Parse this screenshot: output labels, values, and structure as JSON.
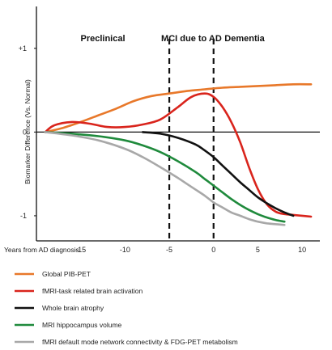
{
  "chart_data": {
    "type": "line",
    "ylabel": "Biomarker Difference (Vs. Normal)",
    "xlabel": "Years from AD diagnosis",
    "xlim": [
      -20,
      12
    ],
    "ylim": [
      -1.3,
      1.5
    ],
    "x_ticks": [
      {
        "value": -15,
        "label": "-15"
      },
      {
        "value": -10,
        "label": "-10"
      },
      {
        "value": -5,
        "label": "-5"
      },
      {
        "value": 0,
        "label": "0"
      },
      {
        "value": 5,
        "label": "5"
      },
      {
        "value": 10,
        "label": "10"
      }
    ],
    "y_ticks": [
      {
        "value": 1,
        "label": "+1"
      },
      {
        "value": 0,
        "label": "0"
      },
      {
        "value": -1,
        "label": "-1"
      }
    ],
    "phases": [
      {
        "label": "Preclinical",
        "x": -12.5
      },
      {
        "label": "MCI due to AD",
        "x": -2.5
      },
      {
        "label": "Dementia",
        "x": 3.5
      }
    ],
    "dividers": [
      -5,
      0
    ],
    "grid": false,
    "legend_position": "bottom",
    "series": [
      {
        "name": "Global PIB-PET",
        "color": "#e8782a",
        "x": [
          -19,
          -17,
          -15,
          -13,
          -11,
          -9,
          -7,
          -5,
          -3,
          -1,
          1,
          3,
          5,
          7,
          9,
          11
        ],
        "y": [
          0.0,
          0.05,
          0.12,
          0.2,
          0.28,
          0.37,
          0.43,
          0.46,
          0.49,
          0.51,
          0.53,
          0.54,
          0.55,
          0.56,
          0.57,
          0.57
        ]
      },
      {
        "name": "fMRI-task related brain activation",
        "color": "#d9241c",
        "x": [
          -19,
          -18,
          -16,
          -14,
          -12,
          -10,
          -8,
          -6,
          -4,
          -2.5,
          -1,
          0,
          1,
          2,
          3,
          4,
          5,
          6,
          7,
          8,
          9,
          10,
          11
        ],
        "y": [
          0.0,
          0.08,
          0.12,
          0.1,
          0.06,
          0.06,
          0.09,
          0.15,
          0.3,
          0.42,
          0.46,
          0.42,
          0.3,
          0.12,
          -0.12,
          -0.42,
          -0.68,
          -0.86,
          -0.95,
          -0.98,
          -0.99,
          -1.0,
          -1.01
        ]
      },
      {
        "name": "Whole brain atrophy",
        "color": "#111111",
        "x": [
          -8,
          -6,
          -4,
          -2,
          -1,
          0,
          1,
          2,
          3,
          4,
          5,
          6,
          7,
          8,
          9
        ],
        "y": [
          0.0,
          -0.02,
          -0.07,
          -0.15,
          -0.22,
          -0.3,
          -0.4,
          -0.5,
          -0.6,
          -0.69,
          -0.78,
          -0.85,
          -0.91,
          -0.96,
          -1.0
        ]
      },
      {
        "name": "MRI hippocampus volume",
        "color": "#1f8a3c",
        "x": [
          -19,
          -16,
          -13,
          -10,
          -8,
          -6,
          -4,
          -2,
          -1,
          0,
          1,
          2,
          3,
          4,
          5,
          6,
          7,
          8
        ],
        "y": [
          0.0,
          -0.02,
          -0.05,
          -0.1,
          -0.16,
          -0.24,
          -0.35,
          -0.48,
          -0.56,
          -0.64,
          -0.72,
          -0.8,
          -0.87,
          -0.93,
          -0.98,
          -1.02,
          -1.05,
          -1.07
        ]
      },
      {
        "name": "fMRI default mode network connectivity & FDG-PET metabolism",
        "color": "#a8a8a8",
        "x": [
          -19,
          -16,
          -13,
          -10,
          -8,
          -6,
          -4,
          -3,
          -2,
          -1,
          0,
          1,
          2,
          3,
          4,
          5,
          6,
          7,
          8
        ],
        "y": [
          0.0,
          -0.04,
          -0.1,
          -0.2,
          -0.3,
          -0.42,
          -0.55,
          -0.62,
          -0.69,
          -0.76,
          -0.84,
          -0.9,
          -0.96,
          -1.0,
          -1.04,
          -1.07,
          -1.09,
          -1.1,
          -1.11
        ]
      }
    ]
  }
}
